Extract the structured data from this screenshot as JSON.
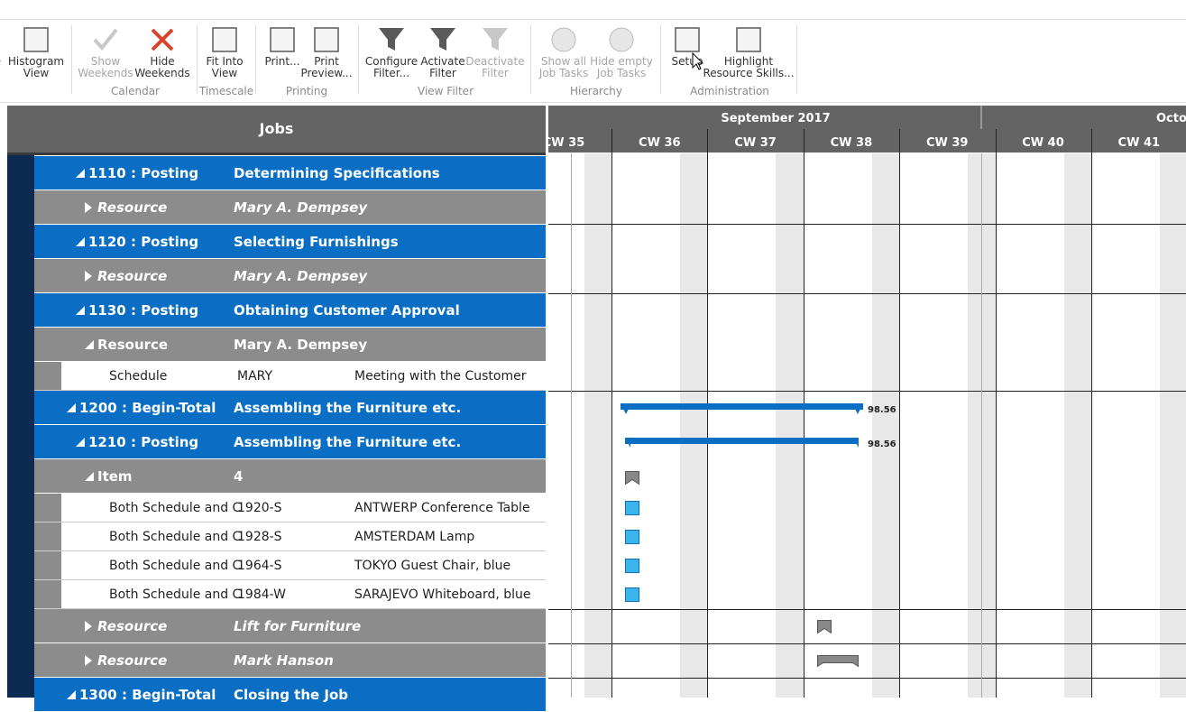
{
  "ribbon": {
    "buttons": [
      {
        "lines": [
          "e"
        ]
      },
      {
        "lines": [
          "Histogram",
          "View"
        ]
      },
      {
        "lines": [
          "Show",
          "Weekends"
        ],
        "disabled": true
      },
      {
        "lines": [
          "Hide",
          "Weekends"
        ]
      },
      {
        "lines": [
          "Fit Into",
          "View"
        ]
      },
      {
        "lines": [
          "Print..."
        ]
      },
      {
        "lines": [
          "Print",
          "Preview..."
        ]
      },
      {
        "lines": [
          "Configure",
          "Filter..."
        ]
      },
      {
        "lines": [
          "Activate",
          "Filter"
        ]
      },
      {
        "lines": [
          "Deactivate",
          "Filter"
        ],
        "disabled": true
      },
      {
        "lines": [
          "Show all",
          "Job Tasks"
        ],
        "disabled": true
      },
      {
        "lines": [
          "Hide empty",
          "Job Tasks"
        ],
        "disabled": true
      },
      {
        "lines": [
          "Setup"
        ]
      },
      {
        "lines": [
          "Highlight",
          "Resource Skills..."
        ]
      }
    ],
    "groups": [
      "Calendar",
      "Timescale",
      "Printing",
      "View Filter",
      "Hierarchy",
      "Administration"
    ]
  },
  "grid": {
    "title": "Jobs",
    "months": [
      "September 2017",
      "Octob"
    ],
    "weeks": [
      "CW 35",
      "CW 36",
      "CW 37",
      "CW 38",
      "CW 39",
      "CW 40",
      "CW 41"
    ],
    "rows": [
      {
        "level": 1,
        "expanded": true,
        "color": "#0a6fc4",
        "cells": [
          "1110 : Posting",
          "Determining Specifications"
        ]
      },
      {
        "level": 2,
        "expanded": false,
        "color": "#8c8c8c",
        "cells": [
          "Resource",
          "Mary A. Dempsey"
        ]
      },
      {
        "level": 1,
        "expanded": true,
        "color": "#0a6fc4",
        "cells": [
          "1120 : Posting",
          "Selecting Furnishings"
        ]
      },
      {
        "level": 2,
        "expanded": false,
        "color": "#8c8c8c",
        "cells": [
          "Resource",
          "Mary A. Dempsey"
        ]
      },
      {
        "level": 1,
        "expanded": true,
        "color": "#0a6fc4",
        "cells": [
          "1130 : Posting",
          "Obtaining Customer Approval"
        ]
      },
      {
        "level": 2,
        "expanded": true,
        "color": "#8c8c8c",
        "cells": [
          "Resource",
          "Mary A. Dempsey"
        ]
      },
      {
        "level": 3,
        "color": "#ffffff",
        "cells": [
          "Schedule",
          "MARY",
          "Meeting with the Customer"
        ]
      },
      {
        "level": 0,
        "expanded": true,
        "color": "#0a6fc4",
        "cells": [
          "1200 : Begin-Total",
          "Assembling the Furniture etc."
        ],
        "bar_label": "98.56"
      },
      {
        "level": 1,
        "expanded": true,
        "color": "#0a6fc4",
        "cells": [
          "1210 : Posting",
          "Assembling the Furniture etc."
        ],
        "bar_label": "98.56"
      },
      {
        "level": 2,
        "expanded": true,
        "color": "#8c8c8c",
        "cells": [
          "Item",
          "4"
        ]
      },
      {
        "level": 3,
        "color": "#ffffff",
        "cells": [
          "Both Schedule and C",
          "1920-S",
          "ANTWERP Conference Table"
        ]
      },
      {
        "level": 3,
        "color": "#ffffff",
        "cells": [
          "Both Schedule and C",
          "1928-S",
          "AMSTERDAM Lamp"
        ]
      },
      {
        "level": 3,
        "color": "#ffffff",
        "cells": [
          "Both Schedule and C",
          "1964-S",
          "TOKYO Guest Chair, blue"
        ]
      },
      {
        "level": 3,
        "color": "#ffffff",
        "cells": [
          "Both Schedule and C",
          "1984-W",
          "SARAJEVO Whiteboard, blue"
        ]
      },
      {
        "level": 2,
        "expanded": false,
        "color": "#8c8c8c",
        "cells": [
          "Resource",
          "Lift for Furniture"
        ]
      },
      {
        "level": 2,
        "expanded": false,
        "color": "#8c8c8c",
        "cells": [
          "Resource",
          "Mark Hanson"
        ]
      },
      {
        "level": 0,
        "expanded": true,
        "color": "#0a6fc4",
        "cells": [
          "1300 : Begin-Total",
          "Closing the Job"
        ]
      }
    ]
  }
}
